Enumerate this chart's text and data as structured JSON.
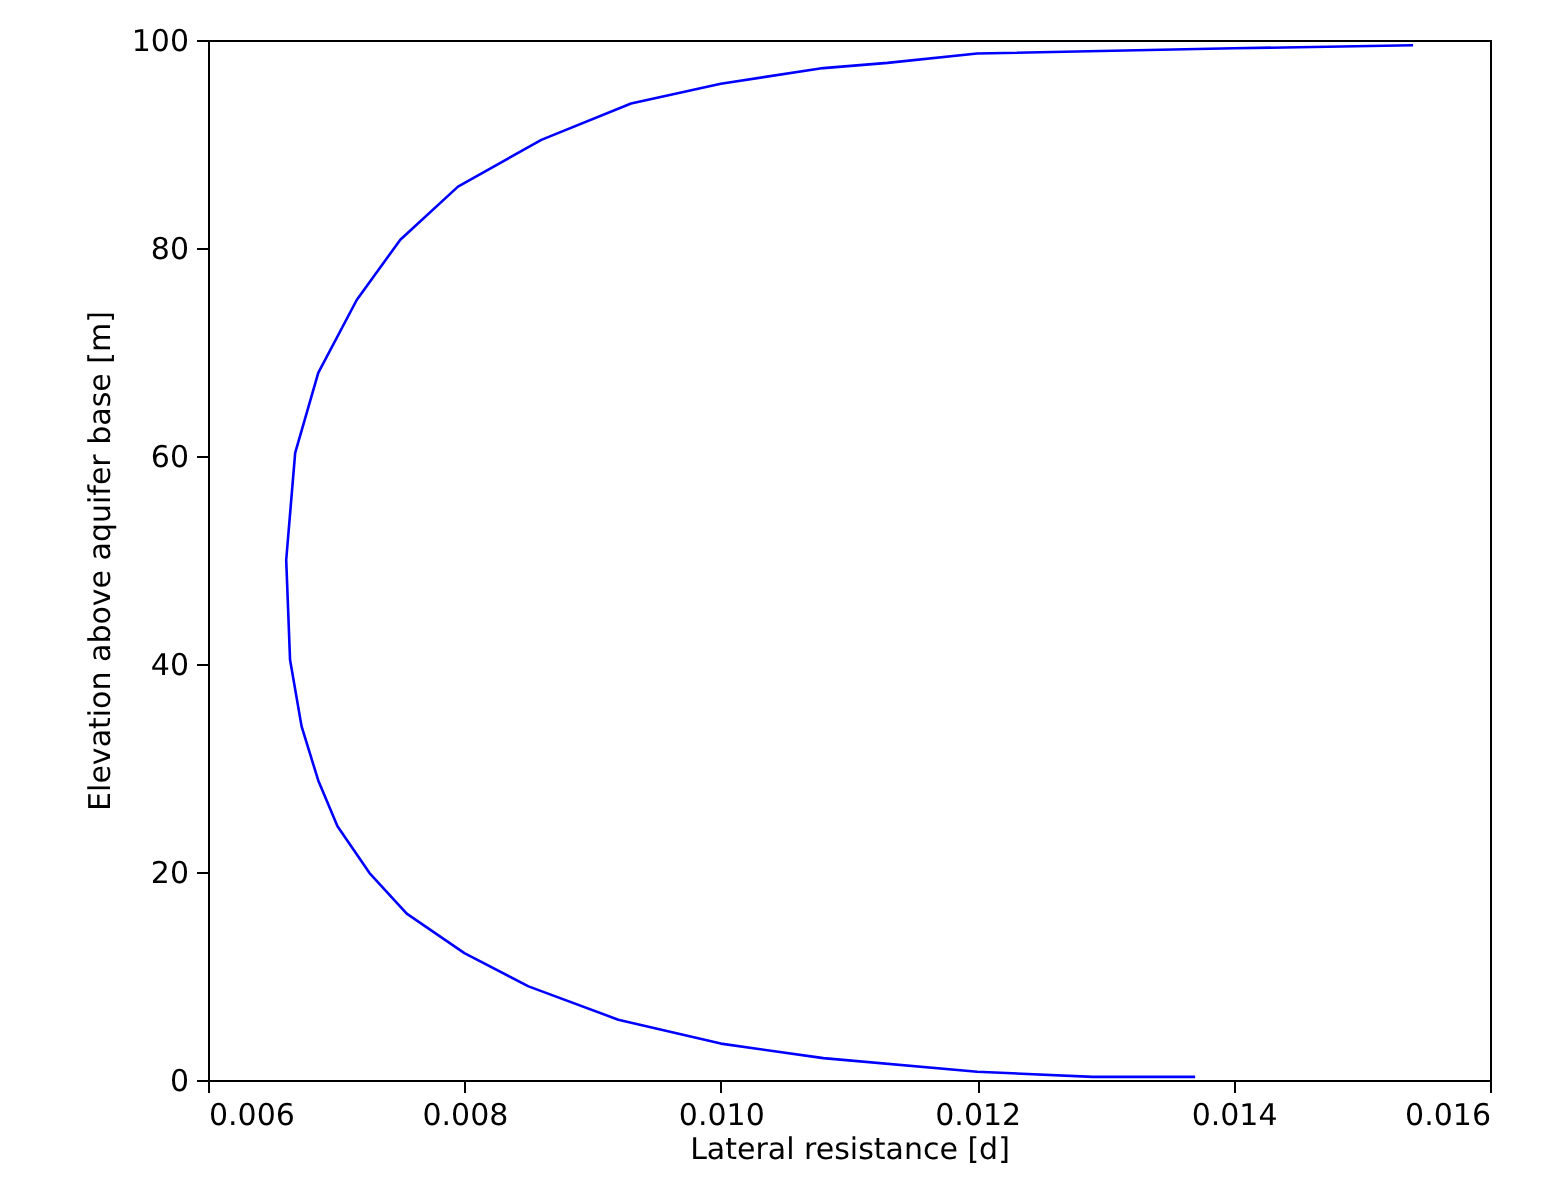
{
  "chart_data": {
    "type": "line",
    "xlabel": "Lateral resistance [d]",
    "ylabel": "Elevation above aquifer base [m]",
    "xlim": [
      0.006,
      0.016
    ],
    "ylim": [
      0,
      100
    ],
    "xticks": [
      0.006,
      0.008,
      {
        "value": 0.01,
        "label": "0.010"
      },
      0.012,
      0.014,
      0.016
    ],
    "yticks": [
      0,
      20,
      40,
      60,
      80,
      100
    ],
    "grid": false,
    "series": [
      {
        "color": "#0000ff",
        "x": [
          0.0137,
          0.0129,
          0.012,
          0.0108,
          0.01,
          0.0092,
          0.0085,
          0.008,
          0.00755,
          0.00726,
          0.00701,
          0.00686,
          0.00673,
          0.00664,
          0.00661,
          0.00668,
          0.00686,
          0.00716,
          0.0075,
          0.00795,
          0.0086,
          0.0093,
          0.01,
          0.0108,
          0.0113,
          0.012,
          0.014,
          0.0154
        ],
        "values": [
          0.3,
          0.3,
          0.8,
          2.1,
          3.5,
          5.8,
          9,
          12.2,
          16,
          19.9,
          24.4,
          28.8,
          34,
          40.4,
          50,
          60.3,
          68,
          75,
          80.8,
          85.9,
          90.4,
          93.9,
          95.8,
          97.3,
          97.8,
          98.7,
          99.2,
          99.5
        ]
      }
    ]
  }
}
